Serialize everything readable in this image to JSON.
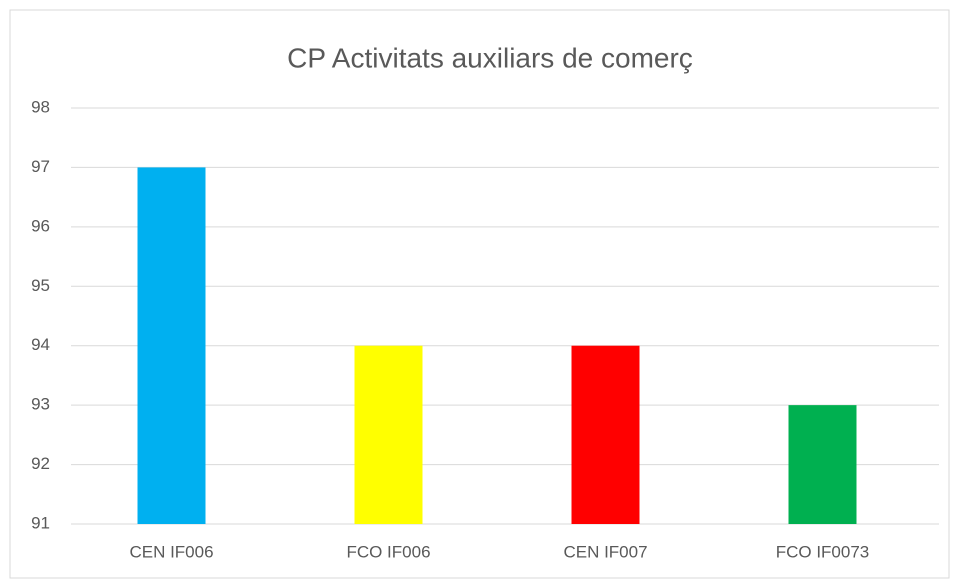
{
  "chart_data": {
    "type": "bar",
    "title": "CP Activitats auxiliars de comerç",
    "categories": [
      "CEN IF006",
      "FCO IF006",
      "CEN IF007",
      "FCO IF0073"
    ],
    "values": [
      97,
      94,
      94,
      93
    ],
    "colors": [
      "#00b0f0",
      "#ffff00",
      "#ff0000",
      "#00b050"
    ],
    "ylim": [
      91,
      98
    ],
    "yticks": [
      91,
      92,
      93,
      94,
      95,
      96,
      97,
      98
    ],
    "grid": true
  }
}
